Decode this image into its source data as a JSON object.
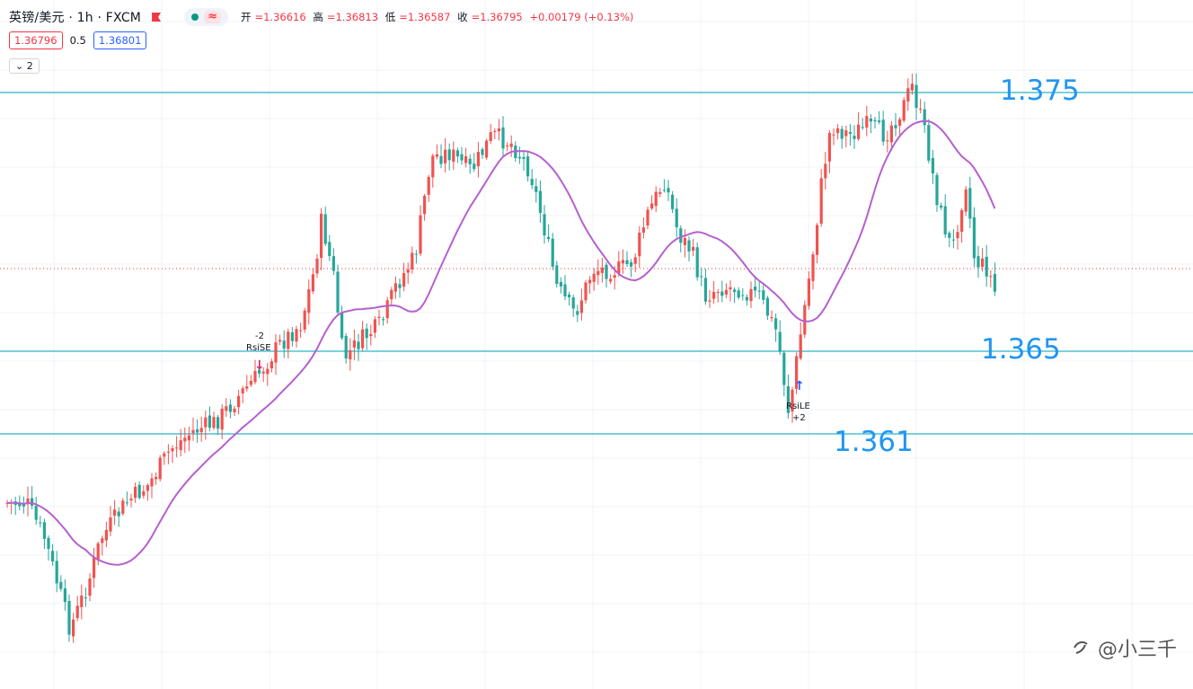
{
  "header": {
    "symbol": "英镑/美元 · 1h · FXCM",
    "approx_glyph": "≈",
    "ohlc": {
      "open_label": "开",
      "open_value": "=1.36616",
      "high_label": "高",
      "high_value": "=1.36813",
      "low_label": "低",
      "low_value": "=1.36587",
      "close_label": "收",
      "close_value": "=1.36795",
      "change": "+0.00179 (+0.13%)"
    }
  },
  "trade": {
    "sell_price": "1.36796",
    "spread": "0.5",
    "buy_price": "1.36801"
  },
  "indicators_toggle": {
    "chevron": "⌄",
    "count": "2"
  },
  "annotations": {
    "level_high": "1.375",
    "level_mid": "1.365",
    "level_low": "1.361",
    "rsi_short_qty": "-2",
    "rsi_short_label": "RsiSE",
    "rsi_long_label": "RsiLE",
    "rsi_long_qty": "+2",
    "arrow_down": "↓",
    "arrow_up": "↑"
  },
  "watermark": {
    "text": "@小三千"
  },
  "colors": {
    "up": "#ef5350",
    "down": "#26a69a",
    "ma": "#b660cd",
    "level_line": "#2bb5c8",
    "label_blue": "#2196f3"
  },
  "chart_data": {
    "type": "candlestick",
    "symbol": "英镑/美元",
    "interval": "1h",
    "horizontal_levels": [
      1.375,
      1.365,
      1.361
    ],
    "current_price": 1.36795,
    "moving_average_present": true,
    "signals": [
      {
        "label": "RsiSE",
        "qty": "-2",
        "direction": "short"
      },
      {
        "label": "RsiLE",
        "qty": "+2",
        "direction": "long"
      }
    ]
  }
}
